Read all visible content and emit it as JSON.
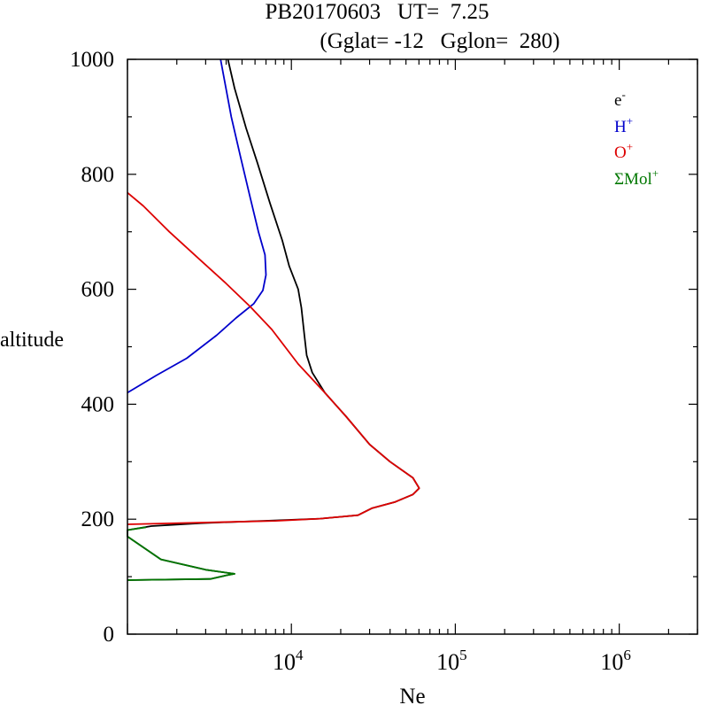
{
  "chart_data": {
    "type": "line",
    "title_line1": "PB20170603   UT=  7.25",
    "title_line2": "(Gglat= -12   Gglon=  280)",
    "xlabel": "Ne",
    "ylabel": "altitude",
    "x_scale": "log",
    "xlim": [
      1000,
      3000000
    ],
    "ylim": [
      0,
      1000
    ],
    "y_ticks": [
      0,
      200,
      400,
      600,
      800,
      1000
    ],
    "y_tick_labels": [
      "0",
      "200",
      "400",
      "600",
      "800",
      "1000"
    ],
    "x_ticks": [
      10000,
      100000,
      1000000
    ],
    "x_tick_labels": [
      {
        "base": "10",
        "exp": "4"
      },
      {
        "base": "10",
        "exp": "5"
      },
      {
        "base": "10",
        "exp": "6"
      }
    ],
    "legend_position": "top-right",
    "legend": [
      {
        "name": "e",
        "sup": "-",
        "color": "#000000"
      },
      {
        "name": "H",
        "sup": "+",
        "color": "#0000cc"
      },
      {
        "name": "O",
        "sup": "+",
        "color": "#dd0000"
      },
      {
        "name": "ΣMol",
        "sup": "+",
        "color": "#007700"
      }
    ],
    "series": [
      {
        "name": "e-",
        "color": "#000000",
        "points": [
          [
            1000,
            94
          ],
          [
            3200,
            96
          ],
          [
            4100,
            103
          ],
          [
            4500,
            105
          ],
          [
            3000,
            112
          ],
          [
            1600,
            130
          ],
          [
            1000,
            170
          ],
          [
            1000,
            181
          ],
          [
            1400,
            188
          ],
          [
            2800,
            193
          ],
          [
            6700,
            197
          ],
          [
            15000,
            201
          ],
          [
            25500,
            207
          ],
          [
            30900,
            219
          ],
          [
            43000,
            230
          ],
          [
            55100,
            243
          ],
          [
            60200,
            254
          ],
          [
            55100,
            272
          ],
          [
            40000,
            300
          ],
          [
            30000,
            330
          ],
          [
            21500,
            379
          ],
          [
            16000,
            420
          ],
          [
            13400,
            455
          ],
          [
            12400,
            485
          ],
          [
            12000,
            520
          ],
          [
            11500,
            568
          ],
          [
            11000,
            600
          ],
          [
            9700,
            640
          ],
          [
            8800,
            685
          ],
          [
            7400,
            750
          ],
          [
            6200,
            820
          ],
          [
            5300,
            880
          ],
          [
            4500,
            950
          ],
          [
            4100,
            1000
          ]
        ]
      },
      {
        "name": "H+",
        "color": "#0000cc",
        "points": [
          [
            1000,
            420
          ],
          [
            1500,
            450
          ],
          [
            2300,
            480
          ],
          [
            3500,
            520
          ],
          [
            4600,
            550
          ],
          [
            5900,
            575
          ],
          [
            6700,
            598
          ],
          [
            7000,
            625
          ],
          [
            6900,
            660
          ],
          [
            6300,
            700
          ],
          [
            5600,
            760
          ],
          [
            4900,
            830
          ],
          [
            4300,
            900
          ],
          [
            3700,
            1000
          ]
        ]
      },
      {
        "name": "O+",
        "color": "#dd0000",
        "points": [
          [
            1000,
            191
          ],
          [
            8000,
            197
          ],
          [
            15000,
            201
          ],
          [
            25500,
            207
          ],
          [
            30900,
            219
          ],
          [
            43000,
            230
          ],
          [
            55100,
            243
          ],
          [
            60200,
            254
          ],
          [
            55100,
            272
          ],
          [
            40000,
            300
          ],
          [
            30000,
            330
          ],
          [
            21500,
            379
          ],
          [
            16000,
            420
          ],
          [
            11000,
            470
          ],
          [
            7600,
            530
          ],
          [
            5600,
            570
          ],
          [
            4000,
            610
          ],
          [
            2800,
            650
          ],
          [
            1800,
            700
          ],
          [
            1250,
            745
          ],
          [
            1000,
            768
          ]
        ]
      },
      {
        "name": "ΣMol+",
        "color": "#007700",
        "points": [
          [
            1000,
            94
          ],
          [
            3200,
            96
          ],
          [
            4100,
            103
          ],
          [
            4500,
            105
          ],
          [
            3000,
            112
          ],
          [
            1600,
            130
          ],
          [
            1000,
            170
          ],
          [
            1000,
            181
          ],
          [
            1300,
            186
          ]
        ]
      }
    ]
  }
}
